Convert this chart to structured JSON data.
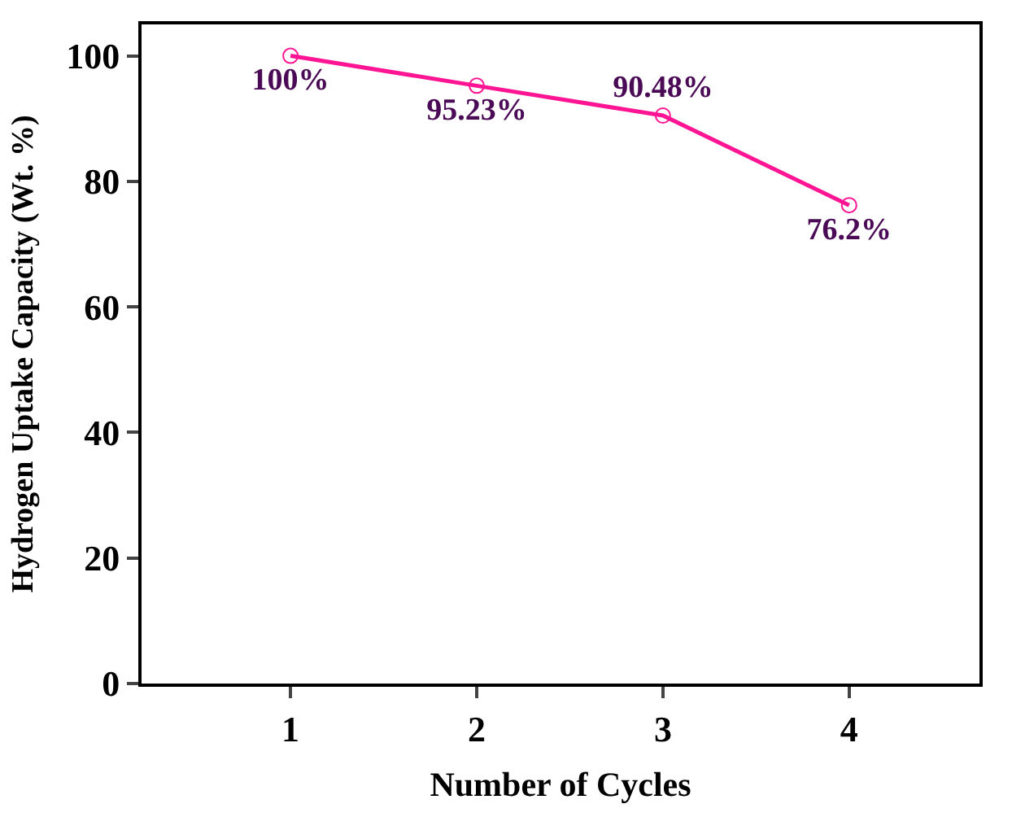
{
  "chart_data": {
    "type": "line",
    "xlabel": "Number of Cycles",
    "ylabel": "Hydrogen Uptake Capacity (Wt. %)",
    "x": [
      1,
      2,
      3,
      4
    ],
    "series": [
      {
        "color": "#ff1493",
        "values": [
          100,
          95.23,
          90.48,
          76.2
        ],
        "value_labels": [
          "100%",
          "95.23%",
          "90.48%",
          "76.2%"
        ]
      }
    ],
    "xlim": [
      0.2,
      4.7
    ],
    "xticks": [
      1,
      2,
      3,
      4
    ],
    "ylim": [
      0,
      105
    ],
    "yticks": [
      0,
      20,
      40,
      60,
      80,
      100
    ],
    "marker": "circle",
    "line_style": "solid",
    "legend": false
  }
}
